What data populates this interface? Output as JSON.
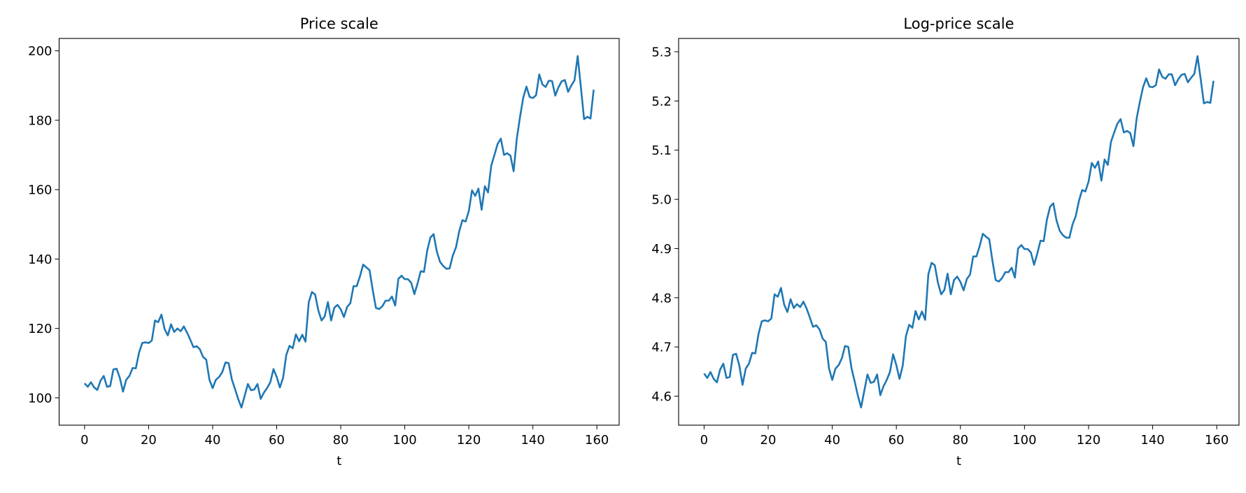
{
  "chart_data": [
    {
      "type": "line",
      "title": "Price scale",
      "xlabel": "t",
      "x": [
        0,
        1,
        2,
        3,
        4,
        5,
        6,
        7,
        8,
        9,
        10,
        11,
        12,
        13,
        14,
        15,
        16,
        17,
        18,
        19,
        20,
        21,
        22,
        23,
        24,
        25,
        26,
        27,
        28,
        29,
        30,
        31,
        32,
        33,
        34,
        35,
        36,
        37,
        38,
        39,
        40,
        41,
        42,
        43,
        44,
        45,
        46,
        47,
        48,
        49,
        50,
        51,
        52,
        53,
        54,
        55,
        56,
        57,
        58,
        59,
        60,
        61,
        62,
        63,
        64,
        65,
        66,
        67,
        68,
        69,
        70,
        71,
        72,
        73,
        74,
        75,
        76,
        77,
        78,
        79,
        80,
        81,
        82,
        83,
        84,
        85,
        86,
        87,
        88,
        89,
        90,
        91,
        92,
        93,
        94,
        95,
        96,
        97,
        98,
        99,
        100,
        101,
        102,
        103,
        104,
        105,
        106,
        107,
        108,
        109,
        110,
        111,
        112,
        113,
        114,
        115,
        116,
        117,
        118,
        119,
        120,
        121,
        122,
        123,
        124,
        125,
        126,
        127,
        128,
        129,
        130,
        131,
        132,
        133,
        134,
        135,
        136,
        137,
        138,
        139,
        140,
        141,
        142,
        143,
        144,
        145,
        146,
        147,
        148,
        149,
        150,
        151,
        152,
        153,
        154,
        155,
        156,
        157,
        158,
        159
      ],
      "series": [
        {
          "color": "#1f77b4",
          "values": [
            104.2,
            103.2,
            104.5,
            103,
            102.3,
            105,
            106.3,
            103.2,
            103.4,
            108.2,
            108.4,
            105.8,
            101.8,
            105.2,
            106.3,
            108.6,
            108.5,
            113,
            115.8,
            116,
            115.8,
            116.5,
            122.3,
            121.8,
            124,
            119.8,
            118,
            121.2,
            119,
            120,
            119.2,
            120.6,
            118.8,
            116.8,
            114.6,
            114.9,
            114,
            111.8,
            111,
            105.2,
            102.8,
            105.2,
            106,
            107.4,
            110.2,
            110,
            105.3,
            102.5,
            99.6,
            97.2,
            100.6,
            104,
            102.2,
            102.4,
            104,
            99.7,
            101.5,
            102.8,
            104.5,
            108.3,
            106,
            103,
            105.8,
            112.4,
            115,
            114.3,
            118.3,
            116.3,
            118.2,
            116.2,
            127.5,
            130.5,
            129.8,
            125.2,
            122.3,
            123.5,
            127.6,
            122.3,
            126,
            126.8,
            125.5,
            123.3,
            126.2,
            127.3,
            132.2,
            132.2,
            135,
            138.4,
            137.6,
            136.8,
            131,
            125.9,
            125.6,
            126.4,
            128,
            128,
            129.2,
            126.6,
            134.3,
            135.2,
            134.2,
            134.2,
            133.2,
            129.9,
            133,
            136.5,
            136.3,
            142.4,
            146.2,
            147.2,
            142.2,
            139.2,
            138,
            137.2,
            137.3,
            141,
            143.4,
            148,
            151.2,
            150.8,
            153.8,
            159.8,
            158.2,
            160.3,
            154.2,
            161,
            159.2,
            166.9,
            170,
            173.2,
            174.7,
            170,
            170.5,
            169.8,
            165.3,
            174.8,
            181,
            186.5,
            189.7,
            186.7,
            186.4,
            187.2,
            193.2,
            190.3,
            189.6,
            191.4,
            191.3,
            187.1,
            189.5,
            191.2,
            191.6,
            188.2,
            190,
            191.5,
            198.5,
            189.5,
            180.3,
            181,
            180.5,
            188.8
          ]
        }
      ],
      "xlim": [
        -7.95,
        166.95
      ],
      "xticks": [
        0,
        20,
        40,
        60,
        80,
        100,
        120,
        140,
        160
      ],
      "ylim": [
        92.13,
        203.57
      ],
      "yticks": [
        100,
        120,
        140,
        160,
        180,
        200
      ]
    },
    {
      "type": "line",
      "title": "Log-price scale",
      "xlabel": "t",
      "x": [
        0,
        1,
        2,
        3,
        4,
        5,
        6,
        7,
        8,
        9,
        10,
        11,
        12,
        13,
        14,
        15,
        16,
        17,
        18,
        19,
        20,
        21,
        22,
        23,
        24,
        25,
        26,
        27,
        28,
        29,
        30,
        31,
        32,
        33,
        34,
        35,
        36,
        37,
        38,
        39,
        40,
        41,
        42,
        43,
        44,
        45,
        46,
        47,
        48,
        49,
        50,
        51,
        52,
        53,
        54,
        55,
        56,
        57,
        58,
        59,
        60,
        61,
        62,
        63,
        64,
        65,
        66,
        67,
        68,
        69,
        70,
        71,
        72,
        73,
        74,
        75,
        76,
        77,
        78,
        79,
        80,
        81,
        82,
        83,
        84,
        85,
        86,
        87,
        88,
        89,
        90,
        91,
        92,
        93,
        94,
        95,
        96,
        97,
        98,
        99,
        100,
        101,
        102,
        103,
        104,
        105,
        106,
        107,
        108,
        109,
        110,
        111,
        112,
        113,
        114,
        115,
        116,
        117,
        118,
        119,
        120,
        121,
        122,
        123,
        124,
        125,
        126,
        127,
        128,
        129,
        130,
        131,
        132,
        133,
        134,
        135,
        136,
        137,
        138,
        139,
        140,
        141,
        142,
        143,
        144,
        145,
        146,
        147,
        148,
        149,
        150,
        151,
        152,
        153,
        154,
        155,
        156,
        157,
        158,
        159
      ],
      "series": [
        {
          "color": "#1f77b4",
          "values": [
            4.646,
            4.637,
            4.649,
            4.635,
            4.628,
            4.654,
            4.666,
            4.637,
            4.639,
            4.684,
            4.686,
            4.662,
            4.623,
            4.656,
            4.666,
            4.688,
            4.687,
            4.727,
            4.752,
            4.754,
            4.752,
            4.758,
            4.807,
            4.802,
            4.82,
            4.786,
            4.771,
            4.797,
            4.779,
            4.787,
            4.781,
            4.792,
            4.778,
            4.76,
            4.741,
            4.744,
            4.736,
            4.717,
            4.71,
            4.656,
            4.633,
            4.656,
            4.663,
            4.677,
            4.702,
            4.7,
            4.657,
            4.63,
            4.601,
            4.577,
            4.611,
            4.644,
            4.627,
            4.629,
            4.644,
            4.602,
            4.62,
            4.633,
            4.649,
            4.685,
            4.663,
            4.635,
            4.662,
            4.722,
            4.745,
            4.739,
            4.773,
            4.756,
            4.772,
            4.755,
            4.848,
            4.871,
            4.866,
            4.83,
            4.807,
            4.816,
            4.849,
            4.807,
            4.836,
            4.843,
            4.832,
            4.815,
            4.838,
            4.847,
            4.884,
            4.884,
            4.905,
            4.93,
            4.924,
            4.919,
            4.875,
            4.836,
            4.833,
            4.84,
            4.852,
            4.852,
            4.861,
            4.841,
            4.9,
            4.907,
            4.899,
            4.899,
            4.892,
            4.867,
            4.89,
            4.916,
            4.915,
            4.959,
            4.985,
            4.992,
            4.957,
            4.936,
            4.927,
            4.922,
            4.922,
            4.949,
            4.966,
            4.997,
            5.019,
            5.016,
            5.036,
            5.074,
            5.064,
            5.077,
            5.038,
            5.081,
            5.07,
            5.117,
            5.136,
            5.154,
            5.163,
            5.136,
            5.139,
            5.135,
            5.108,
            5.164,
            5.198,
            5.228,
            5.246,
            5.229,
            5.228,
            5.232,
            5.264,
            5.249,
            5.245,
            5.254,
            5.254,
            5.232,
            5.244,
            5.253,
            5.255,
            5.238,
            5.247,
            5.255,
            5.291,
            5.244,
            5.195,
            5.198,
            5.196,
            5.241
          ]
        }
      ],
      "xlim": [
        -7.95,
        166.95
      ],
      "xticks": [
        0,
        20,
        40,
        60,
        80,
        100,
        120,
        140,
        160
      ],
      "ylim": [
        4.541,
        5.327
      ],
      "yticks": [
        4.6,
        4.7,
        4.8,
        4.9,
        {
          "value": 5,
          "label": "5.0"
        },
        5.1,
        5.2,
        5.3
      ]
    }
  ]
}
